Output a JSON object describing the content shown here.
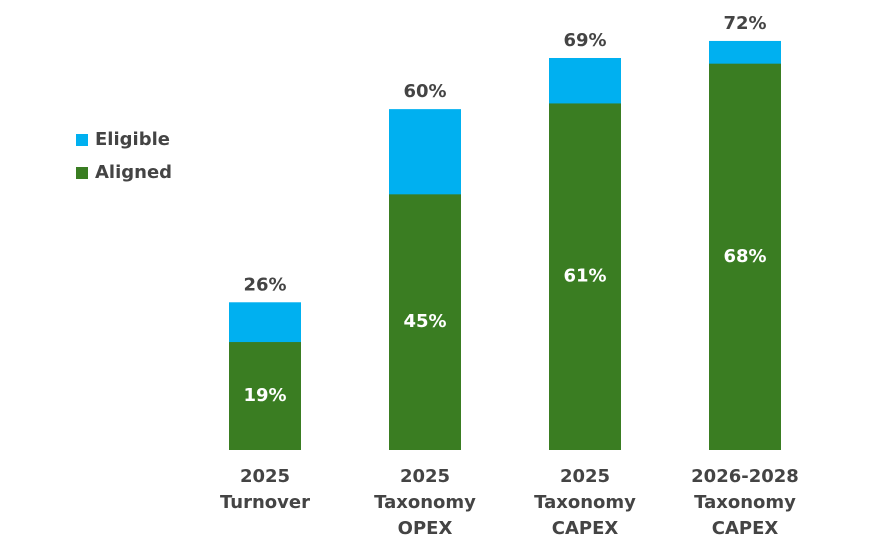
{
  "chart_data": {
    "type": "bar",
    "categories": [
      [
        "2025",
        "Turnover"
      ],
      [
        "2025",
        "Taxonomy",
        "OPEX"
      ],
      [
        "2025",
        "Taxonomy",
        "CAPEX"
      ],
      [
        "2026-2028",
        "Taxonomy",
        "CAPEX"
      ]
    ],
    "series": [
      {
        "name": "Eligible",
        "color": "#00b0f0",
        "values": [
          26,
          60,
          69,
          72
        ],
        "value_labels": [
          "26%",
          "60%",
          "69%",
          "72%"
        ]
      },
      {
        "name": "Aligned",
        "color": "#3a7d22",
        "values": [
          19,
          45,
          61,
          68
        ],
        "value_labels": [
          "19%",
          "45%",
          "61%",
          "68%"
        ]
      }
    ],
    "ylim": [
      0,
      80
    ]
  }
}
